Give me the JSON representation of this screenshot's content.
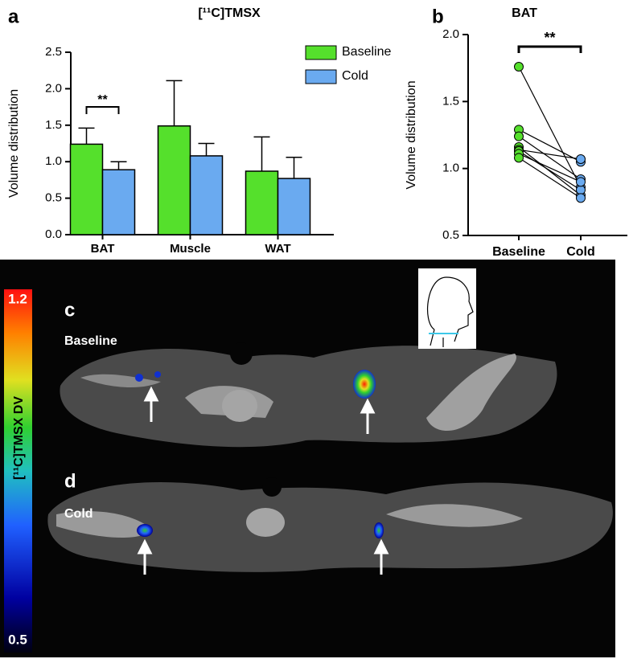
{
  "chart_data": [
    {
      "type": "bar",
      "panel": "a",
      "title": "[¹¹C]TMSX",
      "y_label": "Volume distribution",
      "categories": [
        "BAT",
        "Muscle",
        "WAT"
      ],
      "series": [
        {
          "name": "Baseline",
          "color": "#55e02c",
          "values": [
            1.24,
            1.49,
            0.87
          ],
          "errors": [
            0.22,
            0.62,
            0.47
          ]
        },
        {
          "name": "Cold",
          "color": "#6aaaf0",
          "values": [
            0.89,
            1.08,
            0.77
          ],
          "errors": [
            0.11,
            0.17,
            0.29
          ]
        }
      ],
      "ylim": [
        0,
        2.5
      ],
      "yticks": [
        {
          "value": 0,
          "label": "0.0"
        },
        0.5,
        {
          "value": 1,
          "label": "1.0"
        },
        1.5,
        {
          "value": 2,
          "label": "2.0"
        },
        2.5
      ],
      "annotation": "**",
      "legend": "upper right"
    },
    {
      "type": "paired",
      "panel": "b",
      "title": "BAT",
      "y_label": "Volume distribution",
      "series": [
        {
          "name": "Baseline",
          "color": "#55e02c",
          "values": [
            1.76,
            1.29,
            1.24,
            1.16,
            1.14,
            1.13,
            1.11,
            1.08
          ]
        },
        {
          "name": "Cold",
          "color": "#6aaaf0",
          "values": [
            0.86,
            1.05,
            0.92,
            0.8,
            1.07,
            0.84,
            0.9,
            0.78
          ]
        }
      ],
      "ylim": [
        0.5,
        2.0
      ],
      "yticks": [
        0.5,
        {
          "value": 1,
          "label": "1.0"
        },
        1.5,
        {
          "value": 2,
          "label": "2.0"
        }
      ],
      "annotation": "**"
    }
  ],
  "imaging": {
    "colorbar": {
      "max": 1.2,
      "min": 0.5,
      "label": "[¹¹C]TMSX DV"
    },
    "panels": [
      {
        "letter": "c",
        "label": "Baseline"
      },
      {
        "letter": "d",
        "label": "Cold"
      }
    ]
  }
}
